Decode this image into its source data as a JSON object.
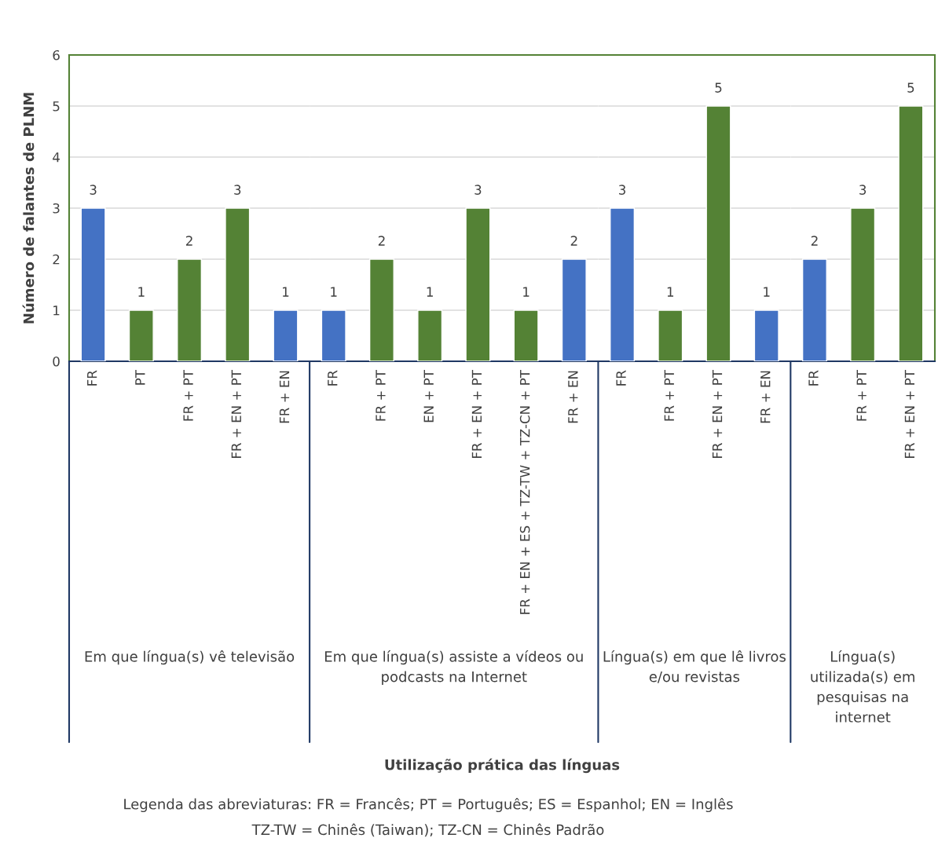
{
  "chart_data": [
    {
      "type": "bar",
      "categories": [
        "FR",
        "PT",
        "FR + PT",
        "FR + EN + PT",
        "FR + EN"
      ],
      "values": [
        3,
        1,
        2,
        3,
        1
      ],
      "colors": [
        "#4472c4",
        "#548235",
        "#548235",
        "#548235",
        "#4472c4"
      ],
      "xlabel": "Em que língua(s) vê televisão",
      "ylabel": "Número de falantes de PLNM",
      "ylim": [
        0,
        6
      ],
      "yticks": [
        0,
        1,
        2,
        3,
        4,
        5,
        6
      ],
      "grid": "y",
      "data_labels": true,
      "legend": false,
      "annotations": [
        "Utilização prática das línguas",
        "Legenda das abreviaturas: FR = Francês; PT = Português; ES = Espanhol; EN = Inglês",
        "TZ-TW = Chinês (Taiwan); TZ-CN = Chinês Padrão"
      ]
    },
    {
      "type": "bar",
      "categories": [
        "FR",
        "FR + PT",
        "EN + PT",
        "FR + EN + PT",
        "FR + EN + ES + TZ-TW + TZ-CN + PT",
        "FR + EN"
      ],
      "values": [
        1,
        2,
        1,
        3,
        1,
        2
      ],
      "colors": [
        "#4472c4",
        "#548235",
        "#548235",
        "#548235",
        "#548235",
        "#4472c4"
      ],
      "xlabel": "Em que língua(s) assiste a vídeos ou\npodcasts na Internet",
      "ylim": [
        0,
        6
      ],
      "yticks": [
        0,
        1,
        2,
        3,
        4,
        5,
        6
      ],
      "grid": "y",
      "data_labels": true,
      "tick_labels": "x"
    },
    {
      "type": "bar",
      "categories": [
        "FR",
        "FR + PT",
        "FR + EN + PT",
        "FR + EN"
      ],
      "values": [
        3,
        1,
        5,
        1
      ],
      "colors": [
        "#4472c4",
        "#548235",
        "#548235",
        "#4472c4"
      ],
      "xlabel": "Língua(s) em que lê livros\ne/ou revistas",
      "ylim": [
        0,
        6
      ],
      "yticks": [
        0,
        1,
        2,
        3,
        4,
        5,
        6
      ],
      "grid": "y",
      "data_labels": true,
      "tick_labels": "x"
    },
    {
      "type": "bar",
      "categories": [
        "FR",
        "FR + PT",
        "FR + EN + PT"
      ],
      "values": [
        2,
        3,
        5
      ],
      "colors": [
        "#4472c4",
        "#548235",
        "#548235"
      ],
      "xlabel": "Língua(s)\nutilizada(s) em\npesquisas na\ninternet",
      "ylim": [
        0,
        6
      ],
      "yticks": [
        0,
        1,
        2,
        3,
        4,
        5,
        6
      ],
      "grid": "y",
      "data_labels": true,
      "tick_labels": "x"
    }
  ]
}
